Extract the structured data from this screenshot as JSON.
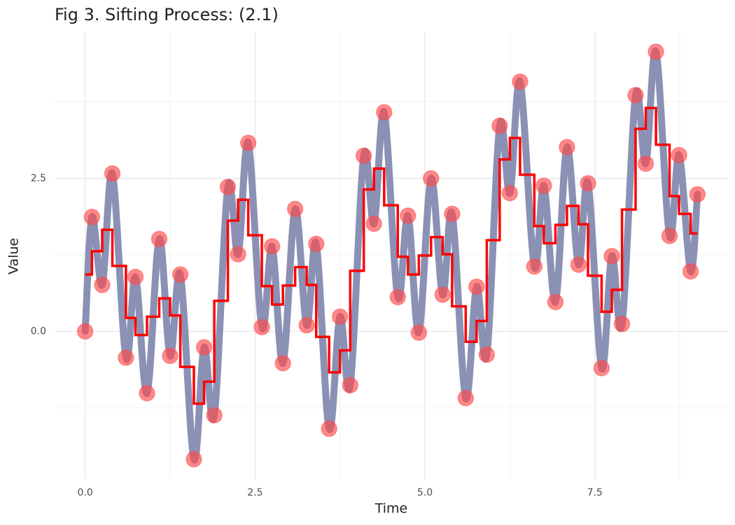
{
  "chart_data": {
    "type": "line",
    "title": "Fig 3. Sifting Process: (2.1)",
    "xlabel": "Time",
    "ylabel": "Value",
    "xlim": [
      -0.45,
      9.46
    ],
    "ylim": [
      -2.42,
      4.9
    ],
    "xticks": [
      {
        "value": 0,
        "label": "0.0"
      },
      2.5,
      {
        "value": 5,
        "label": "5.0"
      },
      7.5
    ],
    "yticks": [
      {
        "value": 0,
        "label": "0.0"
      },
      2.5
    ],
    "x_minor_ticks": [
      1.25,
      3.75,
      6.25,
      8.75
    ],
    "y_minor_ticks": [
      -1.25,
      1.25,
      3.75
    ],
    "grid": true,
    "x": [
      0,
      0.1,
      0.25,
      0.4,
      0.6,
      0.74,
      0.91,
      1.09,
      1.25,
      1.4,
      1.6,
      1.75,
      1.9,
      2.1,
      2.25,
      2.4,
      2.6,
      2.75,
      2.91,
      3.09,
      3.26,
      3.4,
      3.59,
      3.75,
      3.9,
      4.1,
      4.25,
      4.4,
      4.6,
      4.75,
      4.91,
      5.09,
      5.26,
      5.4,
      5.6,
      5.76,
      5.91,
      6.1,
      6.25,
      6.4,
      6.61,
      6.75,
      6.92,
      7.09,
      7.26,
      7.4,
      7.6,
      7.75,
      7.9,
      8.1,
      8.25,
      8.4,
      8.6,
      8.74,
      8.91,
      9.01
    ],
    "series": [
      {
        "type": "line",
        "color": "#8a91b4",
        "values": [
          0,
          1.87,
          0.76,
          2.58,
          -0.43,
          0.89,
          -1.01,
          1.51,
          -0.4,
          0.93,
          -2.09,
          -0.26,
          -1.37,
          2.36,
          1.26,
          3.08,
          0.07,
          1.39,
          -0.52,
          2.0,
          0.1,
          1.43,
          -1.59,
          0.24,
          -0.88,
          2.87,
          1.76,
          3.58,
          0.56,
          1.89,
          -0.02,
          2.5,
          0.6,
          1.92,
          -1.09,
          0.73,
          -0.38,
          3.36,
          2.26,
          4.08,
          1.06,
          2.38,
          0.48,
          3.01,
          1.09,
          2.42,
          -0.6,
          1.23,
          0.12,
          3.86,
          2.74,
          4.57,
          1.56,
          2.88,
          0.98,
          2.24
        ]
      },
      {
        "type": "step",
        "color": "#ff0000",
        "values": [
          0.93,
          1.31,
          1.66,
          1.07,
          0.22,
          -0.06,
          0.24,
          0.54,
          0.26,
          -0.58,
          -1.18,
          -0.82,
          0.5,
          1.81,
          2.15,
          1.57,
          0.74,
          0.44,
          0.75,
          1.05,
          0.76,
          -0.09,
          -0.67,
          -0.31,
          0.99,
          2.32,
          2.66,
          2.06,
          1.22,
          0.93,
          1.24,
          1.54,
          1.26,
          0.41,
          -0.17,
          0.17,
          1.49,
          2.81,
          3.16,
          2.56,
          1.72,
          1.44,
          1.74,
          2.05,
          1.75,
          0.91,
          0.32,
          0.68,
          1.99,
          3.31,
          3.65,
          3.05,
          2.21,
          1.92,
          1.6,
          1.6
        ]
      },
      {
        "type": "scatter",
        "color": "#ff4a4a",
        "values": [
          0,
          1.87,
          0.76,
          2.58,
          -0.43,
          0.89,
          -1.01,
          1.51,
          -0.4,
          0.93,
          -2.09,
          -0.26,
          -1.37,
          2.36,
          1.26,
          3.08,
          0.07,
          1.39,
          -0.52,
          2.0,
          0.1,
          1.43,
          -1.59,
          0.24,
          -0.88,
          2.87,
          1.76,
          3.58,
          0.56,
          1.89,
          -0.02,
          2.5,
          0.6,
          1.92,
          -1.09,
          0.73,
          -0.38,
          3.36,
          2.26,
          4.08,
          1.06,
          2.38,
          0.48,
          3.01,
          1.09,
          2.42,
          -0.6,
          1.23,
          0.12,
          3.86,
          2.74,
          4.57,
          1.56,
          2.88,
          0.98,
          2.24
        ]
      }
    ]
  }
}
